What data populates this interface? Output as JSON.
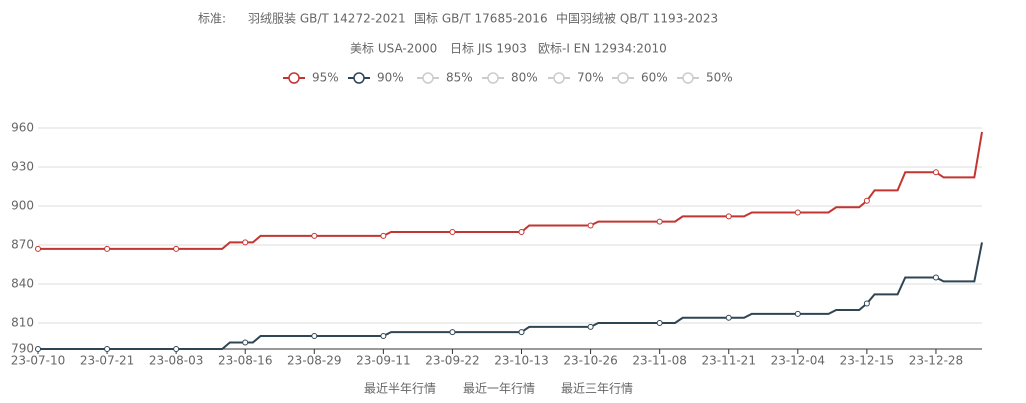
{
  "header": {
    "label": "标准:",
    "tabs": [
      [
        "羽绒服装 GB/T 14272-2021",
        "国标 GB/T 17685-2016",
        "中国羽绒被 QB/T 1193-2023"
      ],
      [
        "美标 USA-2000",
        "日标 JIS 1903",
        "欧标-I EN 12934:2010"
      ]
    ],
    "active_color": "#c23531"
  },
  "chart_data": {
    "type": "line",
    "categories": [
      "23-07-10",
      null,
      null,
      null,
      null,
      null,
      null,
      null,
      null,
      "23-07-21",
      null,
      null,
      null,
      null,
      null,
      null,
      null,
      null,
      "23-08-03",
      null,
      null,
      null,
      null,
      null,
      null,
      null,
      null,
      "23-08-16",
      null,
      null,
      null,
      null,
      null,
      null,
      null,
      null,
      "23-08-29",
      null,
      null,
      null,
      null,
      null,
      null,
      null,
      null,
      "23-09-11",
      null,
      null,
      null,
      null,
      null,
      null,
      null,
      null,
      "23-09-22",
      null,
      null,
      null,
      null,
      null,
      null,
      null,
      null,
      "23-10-13",
      null,
      null,
      null,
      null,
      null,
      null,
      null,
      null,
      "23-10-26",
      null,
      null,
      null,
      null,
      null,
      null,
      null,
      null,
      "23-11-08",
      null,
      null,
      null,
      null,
      null,
      null,
      null,
      null,
      "23-11-21",
      null,
      null,
      null,
      null,
      null,
      null,
      null,
      null,
      "23-12-04",
      null,
      null,
      null,
      null,
      null,
      null,
      null,
      null,
      "23-12-15",
      null,
      null,
      null,
      null,
      null,
      null,
      null,
      null,
      "23-12-28",
      null,
      null,
      null,
      null,
      null,
      null
    ],
    "series": [
      {
        "name": "95%",
        "color": "#c23531",
        "values": [
          867,
          867,
          867,
          867,
          867,
          867,
          867,
          867,
          867,
          867,
          867,
          867,
          867,
          867,
          867,
          867,
          867,
          867,
          867,
          867,
          867,
          867,
          867,
          867,
          867,
          872,
          872,
          872,
          872,
          877,
          877,
          877,
          877,
          877,
          877,
          877,
          877,
          877,
          877,
          877,
          877,
          877,
          877,
          877,
          877,
          877,
          880,
          880,
          880,
          880,
          880,
          880,
          880,
          880,
          880,
          880,
          880,
          880,
          880,
          880,
          880,
          880,
          880,
          880,
          885,
          885,
          885,
          885,
          885,
          885,
          885,
          885,
          885,
          888,
          888,
          888,
          888,
          888,
          888,
          888,
          888,
          888,
          888,
          888,
          892,
          892,
          892,
          892,
          892,
          892,
          892,
          892,
          892,
          895,
          895,
          895,
          895,
          895,
          895,
          895,
          895,
          895,
          895,
          895,
          899,
          899,
          899,
          899,
          904,
          912,
          912,
          912,
          912,
          926,
          926,
          926,
          926,
          926,
          922,
          922,
          922,
          922,
          922,
          957
        ]
      },
      {
        "name": "90%",
        "color": "#2f4554",
        "values": [
          790,
          790,
          790,
          790,
          790,
          790,
          790,
          790,
          790,
          790,
          790,
          790,
          790,
          790,
          790,
          790,
          790,
          790,
          790,
          790,
          790,
          790,
          790,
          790,
          790,
          795,
          795,
          795,
          795,
          800,
          800,
          800,
          800,
          800,
          800,
          800,
          800,
          800,
          800,
          800,
          800,
          800,
          800,
          800,
          800,
          800,
          803,
          803,
          803,
          803,
          803,
          803,
          803,
          803,
          803,
          803,
          803,
          803,
          803,
          803,
          803,
          803,
          803,
          803,
          807,
          807,
          807,
          807,
          807,
          807,
          807,
          807,
          807,
          810,
          810,
          810,
          810,
          810,
          810,
          810,
          810,
          810,
          810,
          810,
          814,
          814,
          814,
          814,
          814,
          814,
          814,
          814,
          814,
          817,
          817,
          817,
          817,
          817,
          817,
          817,
          817,
          817,
          817,
          817,
          820,
          820,
          820,
          820,
          825,
          832,
          832,
          832,
          832,
          845,
          845,
          845,
          845,
          845,
          842,
          842,
          842,
          842,
          842,
          872
        ]
      }
    ],
    "inactive_series": [
      "85%",
      "80%",
      "70%",
      "60%",
      "50%"
    ],
    "inactive_color": "#ccc",
    "ylim": [
      790,
      960
    ],
    "yticks": [
      790,
      810,
      840,
      870,
      900,
      930,
      960
    ],
    "grid": true
  },
  "footer": {
    "ranges": [
      "最近半年行情",
      "最近一年行情",
      "最近三年行情"
    ]
  }
}
